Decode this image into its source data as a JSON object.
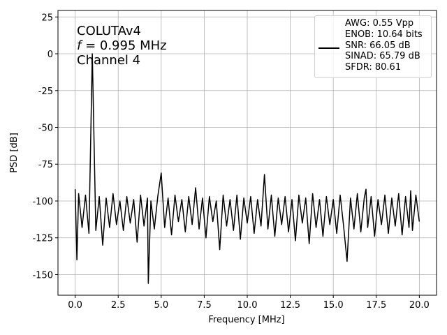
{
  "chart_data": {
    "type": "line",
    "annotations": [
      [
        "COLUTAv4"
      ],
      [
        "f",
        " = 0.995 MHz"
      ],
      [
        "Channel 4"
      ]
    ],
    "xlabel": "Frequency [MHz]",
    "ylabel": "PSD [dB]",
    "x": [
      0.0,
      0.1,
      0.2,
      0.4,
      0.6,
      0.8,
      0.995,
      1.2,
      1.4,
      1.6,
      1.8,
      2.0,
      2.2,
      2.4,
      2.6,
      2.8,
      3.0,
      3.2,
      3.4,
      3.6,
      3.8,
      4.0,
      4.2,
      4.25,
      4.4,
      4.6,
      4.8,
      5.0,
      5.2,
      5.4,
      5.6,
      5.8,
      6.0,
      6.2,
      6.4,
      6.6,
      6.8,
      7.0,
      7.2,
      7.4,
      7.6,
      7.8,
      8.0,
      8.2,
      8.4,
      8.6,
      8.8,
      9.0,
      9.2,
      9.4,
      9.6,
      9.8,
      10.0,
      10.2,
      10.4,
      10.6,
      10.8,
      11.0,
      11.2,
      11.4,
      11.6,
      11.8,
      12.0,
      12.2,
      12.4,
      12.6,
      12.8,
      13.0,
      13.2,
      13.4,
      13.6,
      13.8,
      14.0,
      14.2,
      14.4,
      14.6,
      14.8,
      15.0,
      15.2,
      15.4,
      15.6,
      15.8,
      16.0,
      16.2,
      16.4,
      16.6,
      16.8,
      16.9,
      17.0,
      17.2,
      17.4,
      17.6,
      17.8,
      18.0,
      18.2,
      18.4,
      18.6,
      18.8,
      19.0,
      19.2,
      19.4,
      19.5,
      19.6,
      19.8,
      20.0
    ],
    "series": [
      {
        "name": "AWG: 0.55 Vpp\nENOB: 10.64 bits\nSNR: 66.05 dB\nSINAD: 65.79 dB\nSFDR: 80.61",
        "color": "#000000",
        "values": [
          -92,
          -140,
          -95,
          -118,
          -96,
          -122,
          0,
          -120,
          -97,
          -130,
          -98,
          -118,
          -95,
          -116,
          -100,
          -120,
          -97,
          -115,
          -99,
          -128,
          -96,
          -117,
          -98,
          -156,
          -100,
          -119,
          -97,
          -81,
          -118,
          -98,
          -123,
          -96,
          -114,
          -99,
          -121,
          -97,
          -116,
          -91,
          -119,
          -98,
          -125,
          -97,
          -114,
          -100,
          -133,
          -96,
          -117,
          -99,
          -120,
          -96,
          -126,
          -98,
          -115,
          -97,
          -122,
          -99,
          -117,
          -82,
          -119,
          -96,
          -124,
          -98,
          -116,
          -97,
          -121,
          -99,
          -127,
          -96,
          -115,
          -98,
          -129,
          -95,
          -118,
          -99,
          -124,
          -97,
          -116,
          -99,
          -122,
          -96,
          -117,
          -141,
          -98,
          -119,
          -95,
          -121,
          -98,
          -92,
          -118,
          -97,
          -124,
          -99,
          -116,
          -96,
          -122,
          -98,
          -117,
          -95,
          -123,
          -97,
          -118,
          -93,
          -120,
          -96,
          -114
        ]
      }
    ],
    "xlim": [
      -1,
      21
    ],
    "ylim": [
      -164,
      29.4
    ],
    "xticks": [
      {
        "value": 0,
        "label": "0.0"
      },
      2.5,
      {
        "value": 5,
        "label": "5.0"
      },
      7.5,
      {
        "value": 10,
        "label": "10.0"
      },
      12.5,
      {
        "value": 15,
        "label": "15.0"
      },
      17.5,
      {
        "value": 20,
        "label": "20.0"
      }
    ],
    "yticks": [
      25,
      0,
      -25,
      -50,
      -75,
      -100,
      -125,
      -150
    ],
    "grid": true,
    "legend": "upper right"
  }
}
